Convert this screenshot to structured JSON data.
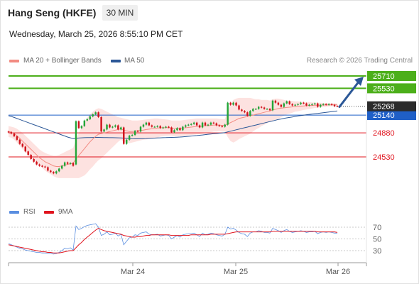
{
  "header": {
    "symbol": "Hang Seng (HKFE)",
    "timeframe": "30 MIN",
    "datetime": "Wednesday, March 25, 2026 8:55:10 PM CET"
  },
  "legend": {
    "ma20_label": "MA 20 + Bollinger Bands",
    "ma20_color": "#f28b82",
    "ma50_label": "MA 50",
    "ma50_color": "#2b5797"
  },
  "credit": "Research © 2026 Trading Central",
  "rsi_legend": {
    "rsi_label": "RSI",
    "rsi_color": "#5a8ee0",
    "ma_label": "9MA",
    "ma_color": "#e0141e"
  },
  "chart_data": [
    {
      "type": "candlestick",
      "title": "",
      "ylim": [
        24300,
        25850
      ],
      "current_price": 25268,
      "current_price_label": "25268",
      "levels": [
        {
          "value": 25710,
          "label": "25710",
          "kind": "target",
          "color": "#4caf1a"
        },
        {
          "value": 25530,
          "label": "25530",
          "kind": "target",
          "color": "#4caf1a"
        },
        {
          "value": 25140,
          "label": "25140",
          "kind": "pivot",
          "color": "#1f5fc7"
        },
        {
          "value": 24880,
          "label": "24880",
          "kind": "support",
          "color": "#e0141e"
        },
        {
          "value": 24530,
          "label": "24530",
          "kind": "support",
          "color": "#e0141e"
        }
      ],
      "arrow": {
        "from": 25260,
        "to": 25700,
        "color": "#2b5797"
      },
      "x_ticks": [
        "Mar 24",
        "Mar 25",
        "Mar 26"
      ],
      "closes": [
        24890,
        24870,
        24830,
        24780,
        24720,
        24680,
        24610,
        24560,
        24500,
        24460,
        24420,
        24400,
        24390,
        24380,
        24330,
        24310,
        24290,
        24320,
        24360,
        24400,
        24450,
        24430,
        24440,
        24400,
        25050,
        24950,
        24980,
        25060,
        25080,
        25120,
        25150,
        25180,
        25110,
        24900,
        24930,
        25000,
        24960,
        24970,
        24990,
        24930,
        24960,
        24720,
        24780,
        24840,
        24850,
        24910,
        24900,
        24970,
        25000,
        25030,
        24990,
        24970,
        24970,
        24980,
        24950,
        24960,
        24970,
        24960,
        24890,
        24920,
        24950,
        24920,
        24970,
        24990,
        25000,
        25010,
        25030,
        24990,
        24960,
        25030,
        24990,
        25000,
        25030,
        25020,
        24990,
        24980,
        24970,
        25000,
        25320,
        25290,
        25320,
        25280,
        25220,
        25200,
        25180,
        25130,
        25200,
        25230,
        25230,
        25260,
        25250,
        25230,
        25230,
        25210,
        25350,
        25320,
        25290,
        25260,
        25310,
        25340,
        25300,
        25280,
        25290,
        25300,
        25320,
        25310,
        25280,
        25290,
        25300,
        25310,
        25260,
        25290,
        25300,
        25290,
        25300,
        25290,
        25270,
        25268
      ],
      "opens": [
        24900,
        24890,
        24870,
        24830,
        24780,
        24720,
        24680,
        24610,
        24560,
        24500,
        24460,
        24420,
        24400,
        24390,
        24380,
        24330,
        24310,
        24290,
        24320,
        24360,
        24400,
        24450,
        24430,
        24440,
        24420,
        25050,
        24950,
        24980,
        25060,
        25080,
        25120,
        25150,
        25180,
        25110,
        24900,
        24930,
        25000,
        24960,
        24970,
        24990,
        24930,
        24960,
        24720,
        24780,
        24840,
        24850,
        24910,
        24900,
        24970,
        25000,
        25030,
        24990,
        24970,
        24970,
        24980,
        24950,
        24960,
        24970,
        24960,
        24890,
        24920,
        24950,
        24920,
        24970,
        24990,
        25000,
        25010,
        25030,
        24990,
        24960,
        25030,
        24990,
        25000,
        25030,
        25020,
        24990,
        24980,
        24970,
        25000,
        25320,
        25290,
        25320,
        25280,
        25220,
        25200,
        25180,
        25130,
        25200,
        25230,
        25230,
        25260,
        25250,
        25230,
        25230,
        25210,
        25350,
        25320,
        25290,
        25260,
        25310,
        25340,
        25300,
        25280,
        25290,
        25300,
        25320,
        25310,
        25280,
        25290,
        25300,
        25310,
        25260,
        25290,
        25300,
        25290,
        25300,
        25290,
        25270
      ],
      "ma20": [
        24900,
        24890,
        24870,
        24840,
        24800,
        24760,
        24720,
        24680,
        24640,
        24600,
        24560,
        24520,
        24490,
        24460,
        24440,
        24420,
        24400,
        24390,
        24390,
        24400,
        24410,
        24420,
        24430,
        24440,
        24500,
        24550,
        24600,
        24650,
        24700,
        24750,
        24790,
        24830,
        24860,
        24870,
        24880,
        24890,
        24900,
        24910,
        24920,
        24930,
        24940,
        24920,
        24910,
        24900,
        24900,
        24905,
        24910,
        24915,
        24920,
        24930,
        24935,
        24940,
        24945,
        24950,
        24955,
        24955,
        24955,
        24955,
        24950,
        24945,
        24945,
        24945,
        24950,
        24955,
        24960,
        24965,
        24970,
        24975,
        24975,
        24980,
        24985,
        24985,
        24990,
        24995,
        24995,
        24995,
        24990,
        24990,
        25010,
        25030,
        25050,
        25070,
        25090,
        25100,
        25110,
        25120,
        25130,
        25140,
        25150,
        25160,
        25170,
        25180,
        25190,
        25200,
        25215,
        25225,
        25235,
        25240,
        25245,
        25250,
        25255,
        25260,
        25265,
        25268,
        25270,
        25272,
        25275,
        25278,
        25280,
        25282,
        25284,
        25285,
        25286,
        25287,
        25288,
        25289,
        25290,
        25290
      ],
      "bb_upper": [
        24980,
        24970,
        24960,
        24940,
        24910,
        24880,
        24840,
        24800,
        24760,
        24720,
        24680,
        24640,
        24610,
        24590,
        24570,
        24560,
        24550,
        24550,
        24560,
        24580,
        24600,
        24620,
        24640,
        24660,
        24780,
        24880,
        24960,
        25040,
        25100,
        25150,
        25190,
        25220,
        25240,
        25230,
        25210,
        25190,
        25170,
        25150,
        25130,
        25110,
        25100,
        25090,
        25080,
        25070,
        25060,
        25060,
        25060,
        25065,
        25070,
        25075,
        25080,
        25085,
        25090,
        25090,
        25085,
        25080,
        25075,
        25070,
        25060,
        25060,
        25060,
        25060,
        25065,
        25070,
        25075,
        25080,
        25085,
        25090,
        25090,
        25090,
        25090,
        25090,
        25090,
        25090,
        25090,
        25085,
        25080,
        25080,
        25200,
        25300,
        25360,
        25380,
        25390,
        25390,
        25390,
        25390,
        25390,
        25380,
        25370,
        25370,
        25360,
        25360,
        25360,
        25350,
        25370,
        25380,
        25380,
        25370,
        25360,
        25350,
        25350,
        25345,
        25340,
        25340,
        25335,
        25330,
        25330,
        25330,
        25325,
        25320,
        25320,
        25320,
        25315,
        25315,
        25310,
        25310,
        25310,
        25310
      ],
      "bb_lower": [
        24820,
        24810,
        24780,
        24740,
        24690,
        24640,
        24600,
        24560,
        24520,
        24480,
        24440,
        24400,
        24370,
        24330,
        24300,
        24280,
        24250,
        24230,
        24220,
        24220,
        24220,
        24220,
        24220,
        24220,
        24220,
        24220,
        24240,
        24260,
        24300,
        24350,
        24390,
        24440,
        24480,
        24510,
        24550,
        24590,
        24630,
        24670,
        24710,
        24750,
        24780,
        24750,
        24740,
        24730,
        24740,
        24750,
        24760,
        24770,
        24780,
        24785,
        24790,
        24795,
        24800,
        24810,
        24825,
        24830,
        24835,
        24840,
        24840,
        24830,
        24830,
        24830,
        24835,
        24840,
        24845,
        24850,
        24855,
        24860,
        24860,
        24870,
        24880,
        24880,
        24890,
        24900,
        24900,
        24905,
        24900,
        24900,
        24820,
        24760,
        24740,
        24760,
        24790,
        24810,
        24830,
        24850,
        24870,
        24900,
        24930,
        24950,
        24980,
        25000,
        25020,
        25050,
        25060,
        25070,
        25090,
        25110,
        25130,
        25150,
        25160,
        25175,
        25190,
        25196,
        25205,
        25214,
        25220,
        25226,
        25235,
        25244,
        25248,
        25250,
        25257,
        25259,
        25266,
        25268,
        25270,
        25270
      ],
      "ma50": [
        25130,
        25120,
        25105,
        25090,
        25075,
        25060,
        25045,
        25030,
        25015,
        25000,
        24985,
        24970,
        24955,
        24940,
        24925,
        24910,
        24895,
        24880,
        24865,
        24850,
        24835,
        24820,
        24808,
        24796,
        24800,
        24805,
        24808,
        24810,
        24812,
        24813,
        24814,
        24815,
        24815,
        24814,
        24813,
        24812,
        24811,
        24810,
        24809,
        24808,
        24807,
        24804,
        24801,
        24798,
        24796,
        24795,
        24795,
        24796,
        24797,
        24798,
        24800,
        24802,
        24804,
        24806,
        24808,
        24810,
        24812,
        24814,
        24815,
        24816,
        24818,
        24820,
        24823,
        24826,
        24830,
        24834,
        24838,
        24842,
        24846,
        24850,
        24855,
        24860,
        24864,
        24868,
        24872,
        24876,
        24880,
        24884,
        24895,
        24905,
        24915,
        24925,
        24935,
        24945,
        24955,
        24965,
        24975,
        24985,
        24995,
        25005,
        25015,
        25025,
        25035,
        25045,
        25055,
        25065,
        25075,
        25083,
        25091,
        25099,
        25106,
        25113,
        25120,
        25127,
        25133,
        25139,
        25145,
        25150,
        25155,
        25160,
        25165,
        25170,
        25175,
        25180,
        25185,
        25190,
        25195,
        25200
      ]
    },
    {
      "type": "line",
      "title": "",
      "ylim": [
        0,
        100
      ],
      "y_ticks": [
        70,
        50,
        30
      ],
      "series": [
        {
          "name": "RSI",
          "values": [
            42,
            40,
            38,
            36,
            34,
            33,
            31,
            30,
            29,
            28,
            27,
            27,
            26,
            26,
            25,
            25,
            24,
            25,
            27,
            30,
            34,
            33,
            35,
            31,
            72,
            66,
            68,
            71,
            73,
            74,
            75,
            76,
            70,
            56,
            58,
            62,
            57,
            58,
            60,
            55,
            58,
            40,
            46,
            52,
            53,
            57,
            56,
            60,
            61,
            62,
            58,
            57,
            57,
            58,
            55,
            56,
            57,
            56,
            50,
            53,
            56,
            53,
            57,
            58,
            59,
            59,
            60,
            57,
            54,
            60,
            57,
            58,
            60,
            59,
            57,
            56,
            55,
            58,
            70,
            67,
            68,
            65,
            61,
            59,
            58,
            54,
            60,
            62,
            62,
            64,
            63,
            61,
            61,
            60,
            68,
            66,
            64,
            61,
            64,
            66,
            63,
            61,
            62,
            63,
            64,
            63,
            61,
            62,
            62,
            63,
            59,
            61,
            62,
            61,
            62,
            61,
            60,
            60
          ]
        },
        {
          "name": "9MA",
          "values": [
            40,
            39,
            38,
            37,
            36,
            35,
            34,
            33,
            32,
            31,
            30,
            29,
            28,
            28,
            27,
            27,
            26,
            26,
            26,
            27,
            28,
            29,
            30,
            30,
            35,
            40,
            44,
            49,
            53,
            57,
            61,
            65,
            68,
            66,
            64,
            63,
            62,
            61,
            60,
            59,
            58,
            56,
            55,
            54,
            53,
            53,
            54,
            54,
            55,
            56,
            56,
            57,
            57,
            57,
            57,
            57,
            57,
            57,
            56,
            56,
            56,
            56,
            56,
            56,
            56,
            57,
            57,
            57,
            57,
            57,
            57,
            57,
            58,
            58,
            58,
            58,
            58,
            58,
            59,
            60,
            61,
            62,
            62,
            62,
            62,
            62,
            62,
            62,
            62,
            62,
            62,
            62,
            62,
            62,
            63,
            63,
            63,
            63,
            63,
            63,
            63,
            63,
            63,
            63,
            63,
            63,
            63,
            63,
            63,
            63,
            62,
            62,
            62,
            62,
            62,
            62,
            62,
            61
          ]
        }
      ]
    }
  ]
}
